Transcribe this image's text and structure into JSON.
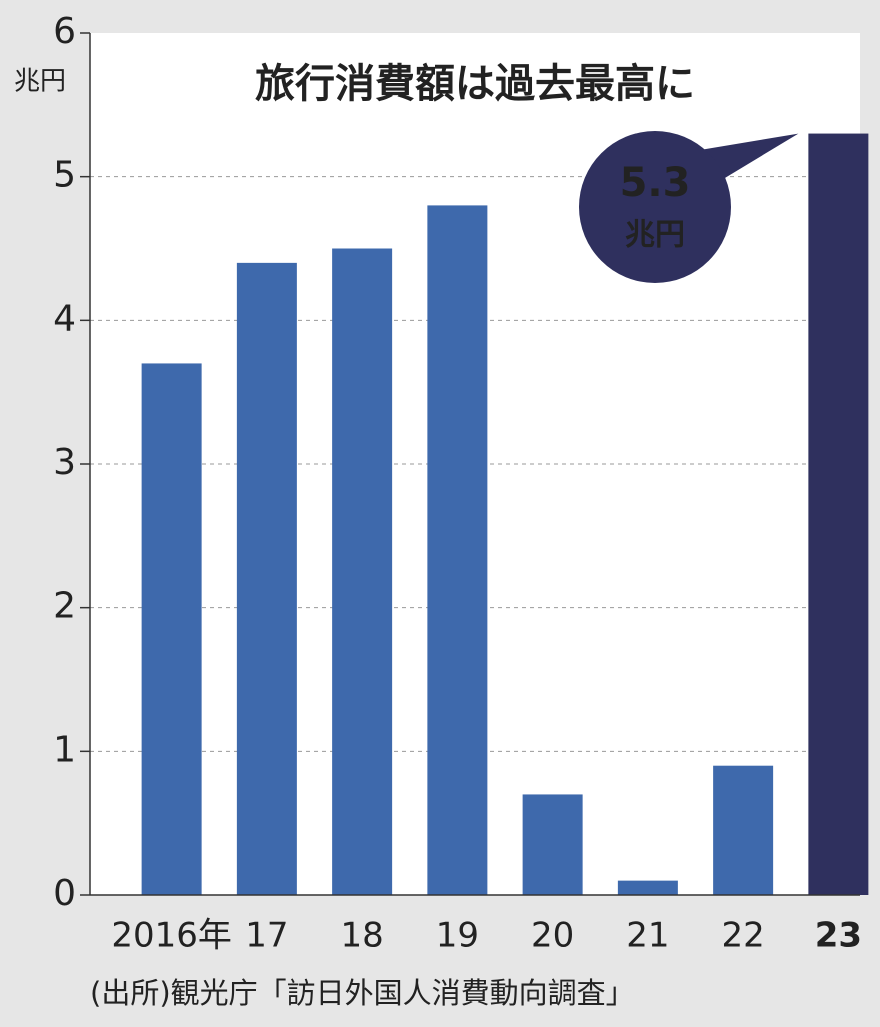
{
  "chart_data": {
    "type": "bar",
    "title": "旅行消費額は過去最高に",
    "y_unit": "兆円",
    "categories": [
      "2016年",
      "17",
      "18",
      "19",
      "20",
      "21",
      "22",
      "23"
    ],
    "values": [
      3.7,
      4.4,
      4.5,
      4.8,
      0.7,
      0.1,
      0.9,
      5.3
    ],
    "color": "#3e69ac",
    "highlight": "23",
    "highlight_color": "#2f305e",
    "ylim": [
      0,
      6
    ],
    "yticks": [
      0,
      1,
      2,
      3,
      4,
      5,
      6
    ],
    "grid": true,
    "source": "(出所)観光庁「訪日外国人消費動向調査」"
  }
}
